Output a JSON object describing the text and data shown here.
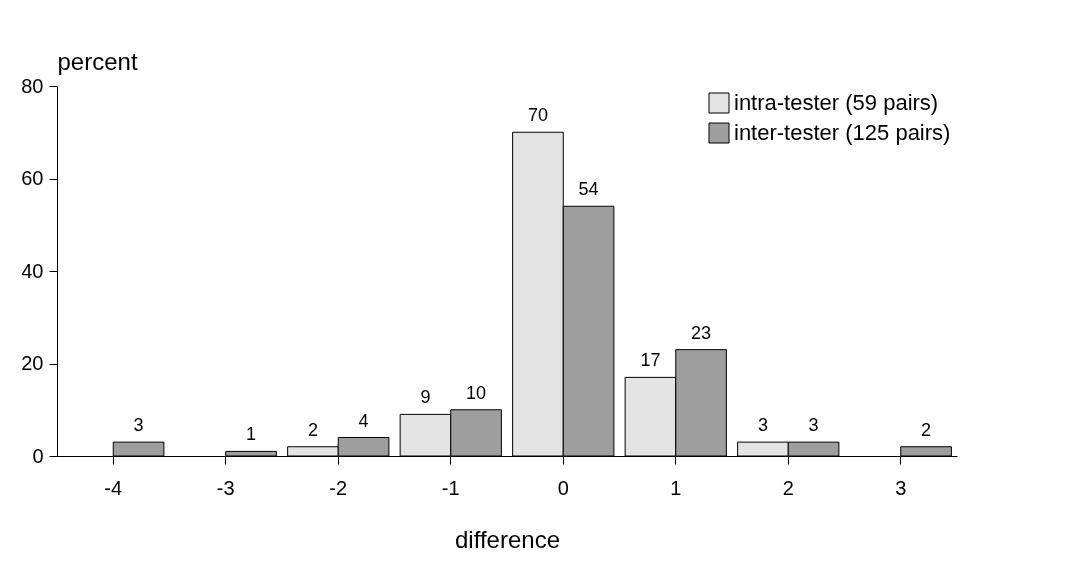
{
  "chart_data": {
    "type": "bar",
    "xlabel": "difference",
    "ylabel": "percent",
    "categories": [
      "-4",
      "-3",
      "-2",
      "-1",
      "0",
      "1",
      "2",
      "3"
    ],
    "series": [
      {
        "name": "intra-tester (59 pairs)",
        "color": "#e4e4e4",
        "values": [
          null,
          null,
          2,
          9,
          70,
          17,
          3,
          null
        ]
      },
      {
        "name": "inter-tester (125 pairs)",
        "color": "#9e9e9e",
        "values": [
          3,
          1,
          4,
          10,
          54,
          23,
          3,
          2
        ]
      }
    ],
    "ylim": [
      0,
      80
    ],
    "yticks": [
      0,
      20,
      40,
      60,
      80
    ],
    "grid": false,
    "legend": "top right",
    "data_labels": true
  }
}
